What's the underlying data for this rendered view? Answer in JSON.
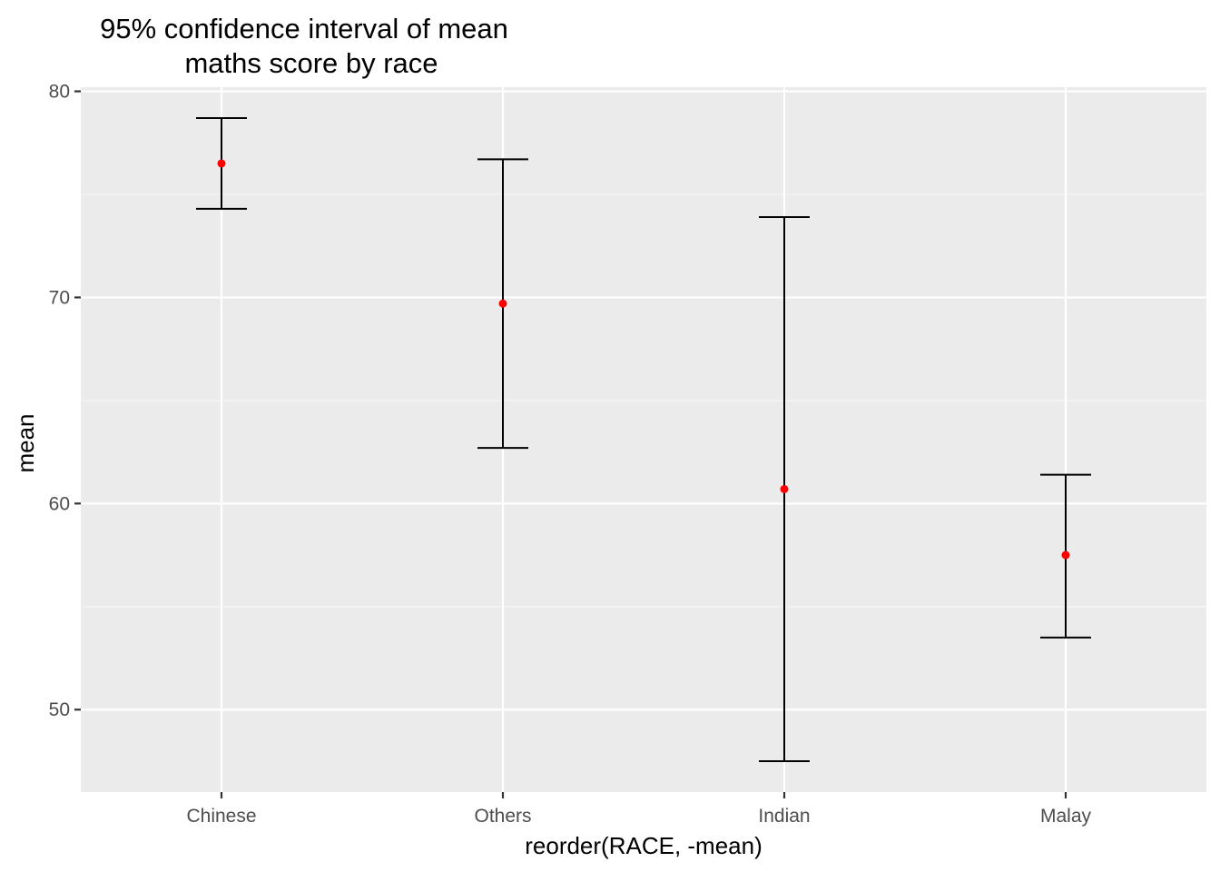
{
  "chart_data": {
    "type": "errorbar",
    "title": "95% confidence interval of mean\nmaths score by race",
    "title_lines": [
      "95% confidence interval of mean",
      "maths score by race"
    ],
    "xlabel": "reorder(RACE, -mean)",
    "ylabel": "mean",
    "categories": [
      "Chinese",
      "Others",
      "Indian",
      "Malay"
    ],
    "mean": [
      76.5,
      69.7,
      60.7,
      57.5
    ],
    "ci_lower": [
      74.3,
      62.7,
      47.5,
      53.5
    ],
    "ci_upper": [
      78.7,
      76.7,
      73.9,
      61.4
    ],
    "ylim": [
      46,
      80.2
    ],
    "yticks": [
      50,
      60,
      70,
      80
    ],
    "ytick_labels": [
      "50",
      "60",
      "70",
      "80"
    ],
    "grid": true,
    "legend": "none",
    "colors": {
      "panel_background": "#ebebeb",
      "major_grid": "#ffffff",
      "minor_grid": "#f7f7f7",
      "errorbar": "#000000",
      "point": "#ff0000",
      "tick_text": "#4d4d4d",
      "tick_mark": "#333333"
    }
  }
}
